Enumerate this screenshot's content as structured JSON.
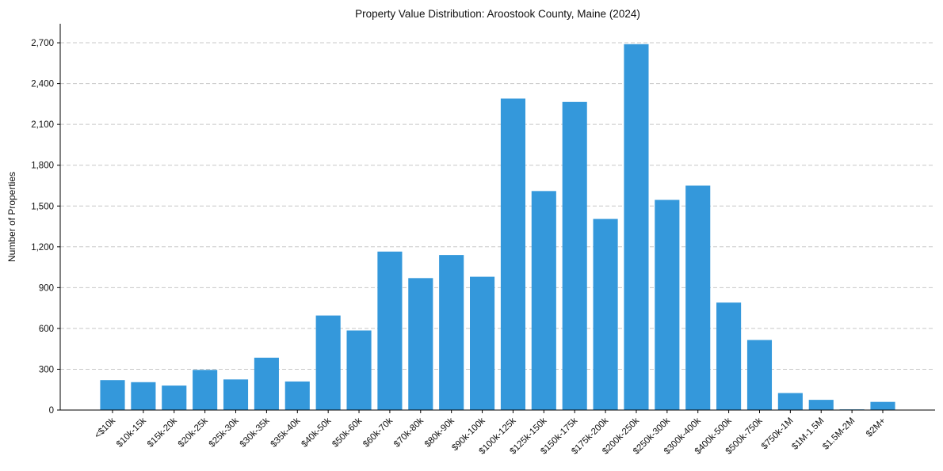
{
  "chart_data": {
    "type": "bar",
    "title": "Property Value Distribution: Aroostook County, Maine (2024)",
    "xlabel": "",
    "ylabel": "Number of Properties",
    "ylim": [
      0,
      2840
    ],
    "yticks": [
      0,
      300,
      600,
      900,
      1200,
      1500,
      1800,
      2100,
      2400,
      2700
    ],
    "ytick_labels": [
      "0",
      "300",
      "600",
      "900",
      "1,200",
      "1,500",
      "1,800",
      "2,100",
      "2,400",
      "2,700"
    ],
    "grid": "y-dashed",
    "bar_color": "#3498db",
    "categories": [
      "<$10k",
      "$10k-15k",
      "$15k-20k",
      "$20k-25k",
      "$25k-30k",
      "$30k-35k",
      "$35k-40k",
      "$40k-50k",
      "$50k-60k",
      "$60k-70k",
      "$70k-80k",
      "$80k-90k",
      "$90k-100k",
      "$100k-125k",
      "$125k-150k",
      "$150k-175k",
      "$175k-200k",
      "$200k-250k",
      "$250k-300k",
      "$300k-400k",
      "$400k-500k",
      "$500k-750k",
      "$750k-1M",
      "$1M-1.5M",
      "$1.5M-2M",
      "$2M+"
    ],
    "values": [
      220,
      205,
      180,
      295,
      225,
      385,
      210,
      695,
      585,
      1165,
      970,
      1140,
      980,
      2290,
      1610,
      2265,
      1405,
      2690,
      1545,
      1650,
      790,
      515,
      125,
      75,
      5,
      60
    ]
  }
}
